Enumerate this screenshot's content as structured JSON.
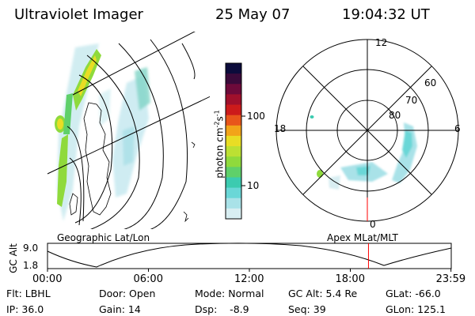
{
  "header": {
    "instrument": "Ultraviolet Imager",
    "date": "25 May 07",
    "time": "19:04:32 UT"
  },
  "colorbar": {
    "label": "photon cm",
    "exp1": "-2",
    "mid": "s",
    "exp2": "-1",
    "ticks": [
      "100",
      "10"
    ],
    "colors": [
      "#0b0b3b",
      "#3a0a3a",
      "#6e0a3a",
      "#a0102c",
      "#cc1b1b",
      "#e8561b",
      "#f2a419",
      "#e9dd24",
      "#bce033",
      "#8fda3c",
      "#5fd06a",
      "#3ccbb0",
      "#6ad7d7",
      "#a9e2e8",
      "#d8eef2"
    ]
  },
  "polar": {
    "lat_labels": [
      "80",
      "70",
      "60"
    ],
    "mlt_labels": {
      "top": "12",
      "left": "18",
      "right": "6",
      "bottom": "0"
    }
  },
  "timeline": {
    "ylabel": "GC Alt",
    "yticks": [
      "9.0",
      "1.8"
    ],
    "left_label": "Geographic Lat/Lon",
    "right_label": "Apex MLat/MLT",
    "xticks": [
      "00:00",
      "06:00",
      "12:00",
      "18:00",
      "23:59"
    ],
    "marker_time_hours": 19.08
  },
  "info": [
    [
      "Flt: LBHL",
      "Door: Open",
      "Mode: Normal",
      "GC Alt: 5.4 Re",
      "GLat: -66.0"
    ],
    [
      "IP: 36.0",
      "Gain: 14",
      "Dsp:    -8.9",
      "Seq: 39",
      "GLon: 125.1"
    ]
  ]
}
